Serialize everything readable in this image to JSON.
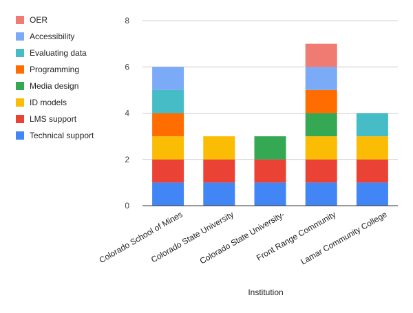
{
  "chart_data": {
    "type": "bar",
    "stacked": true,
    "xlabel": "Institution",
    "ylabel": "",
    "ylim": [
      0,
      8
    ],
    "yticks": [
      0,
      2,
      4,
      6,
      8
    ],
    "grid": true,
    "legend_position": "left",
    "categories": [
      "Colorado School of Mines",
      "Colorado State University",
      "Colorado State University-",
      "Front Range Community",
      "Lamar Community College"
    ],
    "series": [
      {
        "name": "Technical support",
        "color": "#4285f4",
        "values": [
          1,
          1,
          1,
          1,
          1
        ]
      },
      {
        "name": "LMS support",
        "color": "#ea4335",
        "values": [
          1,
          1,
          1,
          1,
          1
        ]
      },
      {
        "name": "ID models",
        "color": "#fbbc04",
        "values": [
          1,
          1,
          0,
          1,
          1
        ]
      },
      {
        "name": "Media design",
        "color": "#34a853",
        "values": [
          0,
          0,
          1,
          1,
          0
        ]
      },
      {
        "name": "Programming",
        "color": "#ff6d01",
        "values": [
          1,
          0,
          0,
          1,
          0
        ]
      },
      {
        "name": "Evaluating data",
        "color": "#46bdc6",
        "values": [
          1,
          0,
          0,
          0,
          1
        ]
      },
      {
        "name": "Accessibility",
        "color": "#7baaf7",
        "values": [
          1,
          0,
          0,
          1,
          0
        ]
      },
      {
        "name": "OER",
        "color": "#f07b72",
        "values": [
          0,
          0,
          0,
          1,
          0
        ]
      }
    ]
  }
}
